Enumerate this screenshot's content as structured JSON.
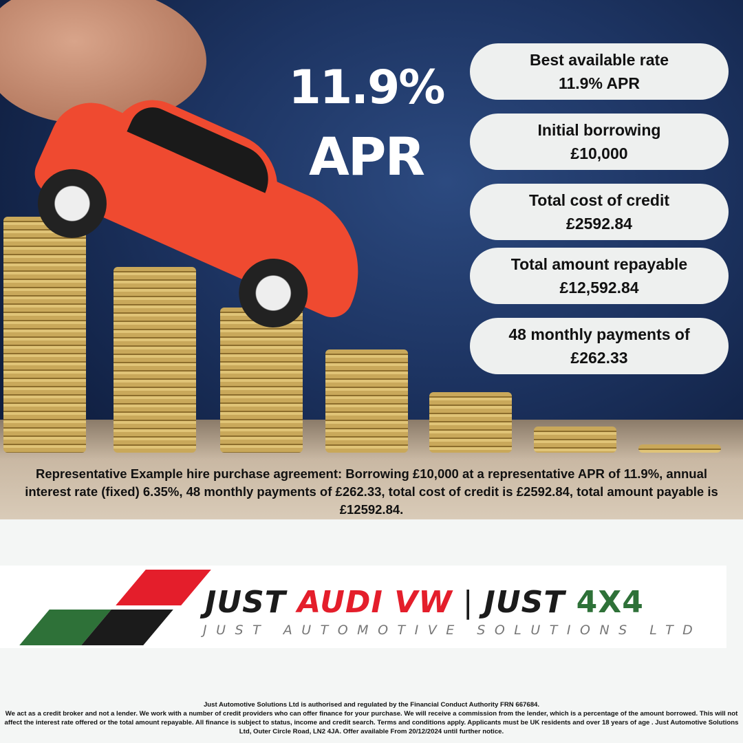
{
  "headline": {
    "rate": "11.9%",
    "label": "APR"
  },
  "cards": [
    {
      "title": "Best available rate",
      "value": "11.9% APR"
    },
    {
      "title": "Initial borrowing",
      "value": "£10,000"
    },
    {
      "title": "Total cost of credit",
      "value": "£2592.84"
    },
    {
      "title": "Total amount repayable",
      "value": "£12,592.84"
    },
    {
      "title": "48 monthly payments of",
      "value": "£262.33"
    }
  ],
  "representative_example": "Representative Example hire purchase agreement: Borrowing £10,000 at a representative APR of 11.9%, annual interest rate (fixed) 6.35%, 48 monthly payments of £262.33, total cost of credit is £2592.84, total amount payable is £12592.84.",
  "logo": {
    "just1": "JUST ",
    "audi_vw": "AUDI VW",
    "sep": "  |  ",
    "just2": "JUST ",
    "x4": "4X4",
    "subtitle": "JUST AUTOMOTIVE SOLUTIONS LTD",
    "colors": {
      "red": "#e41e2b",
      "green": "#2e7138",
      "black": "#1b1b1b"
    }
  },
  "legal": {
    "line1": "Just Automotive Solutions Ltd is authorised and regulated by the Financial Conduct Authority FRN 667684.",
    "body": "We act as a credit broker and not a lender. We work with a number of credit providers who can offer finance for your purchase. We will receive a commission from the lender, which is a percentage of the amount borrowed. This will not affect the interest rate offered or the total amount repayable. All finance is subject to status, income and credit search. Terms and conditions apply. Applicants must be UK residents and over 18 years of age . Just Automotive Solutions Ltd, Outer Circle Road, LN2 4JA. Offer available From 20/12/2024 until further notice."
  }
}
